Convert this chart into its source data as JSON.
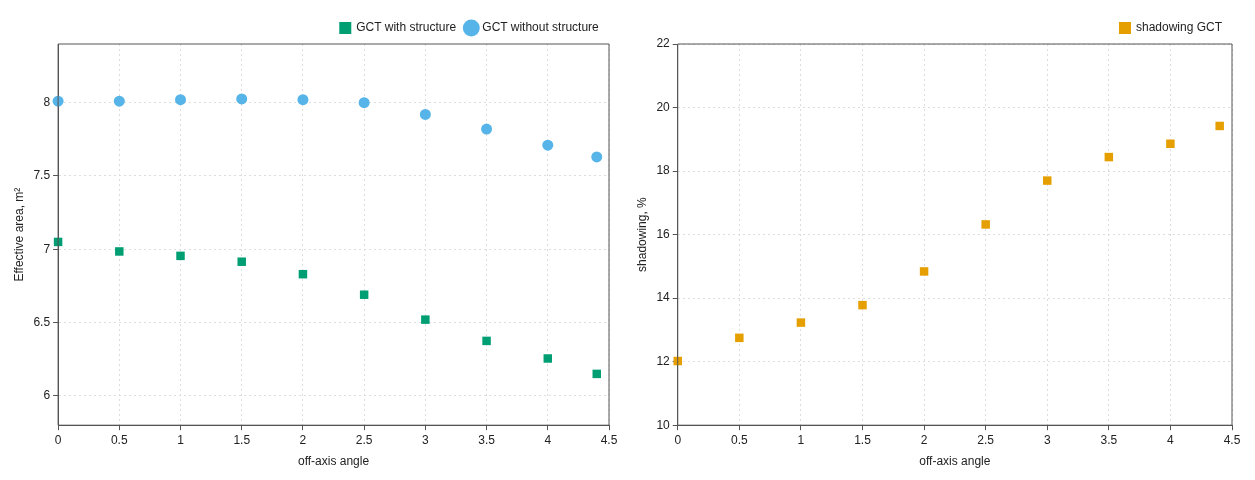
{
  "chart_data": [
    {
      "type": "scatter",
      "xlabel": "off-axis angle",
      "ylabel": "Effective area, m²",
      "xlim": [
        0,
        4.5
      ],
      "xticks": [
        0,
        0.5,
        1,
        1.5,
        2,
        2.5,
        3,
        3.5,
        4,
        4.5
      ],
      "ylim": [
        5.8,
        8.4
      ],
      "yticks": [
        6,
        6.5,
        7,
        7.5,
        8
      ],
      "grid": true,
      "legend": "top right",
      "series": [
        {
          "name": "GCT with structure",
          "color": "#009e73",
          "marker": "square",
          "x": [
            0,
            0.5,
            1,
            1.5,
            2,
            2.5,
            3,
            3.5,
            4,
            4.4
          ],
          "values": [
            7.05,
            6.985,
            6.955,
            6.915,
            6.83,
            6.69,
            6.52,
            6.375,
            6.255,
            6.15
          ]
        },
        {
          "name": "GCT without structure",
          "color": "#56b4e9",
          "marker": "circle",
          "x": [
            0,
            0.5,
            1,
            1.5,
            2,
            2.5,
            3,
            3.5,
            4,
            4.4
          ],
          "values": [
            8.01,
            8.01,
            8.02,
            8.025,
            8.02,
            8.0,
            7.92,
            7.82,
            7.71,
            7.63
          ]
        }
      ]
    },
    {
      "type": "scatter",
      "xlabel": "off-axis angle",
      "ylabel": "shadowing, %",
      "xlim": [
        0,
        4.5
      ],
      "xticks": [
        0,
        0.5,
        1,
        1.5,
        2,
        2.5,
        3,
        3.5,
        4,
        4.5
      ],
      "ylim": [
        10,
        22
      ],
      "yticks": [
        10,
        12,
        14,
        16,
        18,
        20,
        22
      ],
      "grid": true,
      "legend": "top right",
      "series": [
        {
          "name": "shadowing GCT",
          "color": "#e69f00",
          "marker": "square",
          "x": [
            0,
            0.5,
            1,
            1.5,
            2,
            2.5,
            3,
            3.5,
            4,
            4.4
          ],
          "values": [
            12.02,
            12.75,
            13.23,
            13.78,
            14.84,
            16.32,
            17.7,
            18.44,
            18.86,
            19.42
          ]
        }
      ]
    }
  ]
}
